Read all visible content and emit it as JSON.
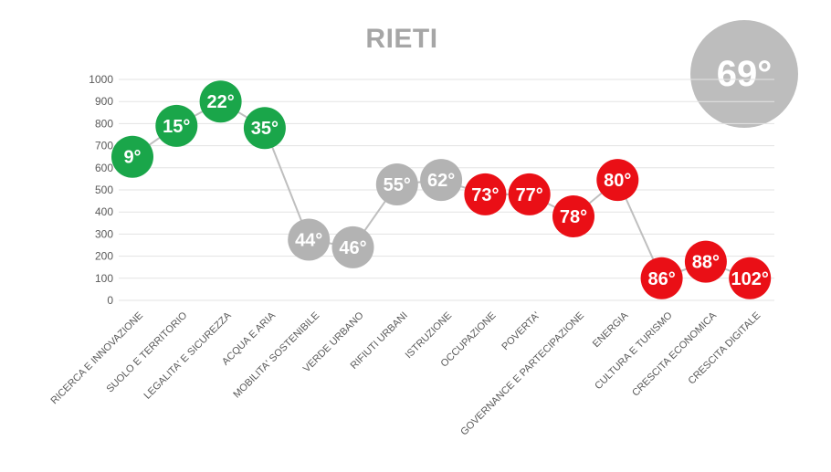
{
  "title": "RIETI",
  "overall_badge": "69°",
  "colors": {
    "green": "#1aa64a",
    "grey": "#b3b3b3",
    "red": "#ea0f16",
    "line": "#bfbfbf",
    "grid": "#e3e3e3",
    "title": "#a6a6a6",
    "badge": "#bdbdbd"
  },
  "chart_data": {
    "type": "line",
    "title": "RIETI",
    "xlabel": "",
    "ylabel": "",
    "ylim": [
      0,
      1000
    ],
    "yticks": [
      0,
      100,
      200,
      300,
      400,
      500,
      600,
      700,
      800,
      900,
      1000
    ],
    "grid": true,
    "categories": [
      "RICERCA E INNOVAZIONE",
      "SUOLO E TERRITORIO",
      "LEGALITA' E SICUREZZA",
      "ACQUA E ARIA",
      "MOBILITA' SOSTENIBILE",
      "VERDE URBANO",
      "RIFIUTI URBANI",
      "ISTRUZIONE",
      "OCCUPAZIONE",
      "POVERTA'",
      "GOVERNANCE E PARTECIPAZIONE",
      "ENERGIA",
      "CULTURA E TURISMO",
      "CRESCITA ECONOMICA",
      "CRESCITA DIGITALE"
    ],
    "values": [
      650,
      790,
      900,
      780,
      275,
      240,
      525,
      545,
      480,
      480,
      380,
      545,
      100,
      175,
      100
    ],
    "data_labels": [
      "9°",
      "15°",
      "22°",
      "35°",
      "44°",
      "46°",
      "55°",
      "62°",
      "73°",
      "77°",
      "78°",
      "80°",
      "86°",
      "88°",
      "102°"
    ],
    "point_colors": [
      "green",
      "green",
      "green",
      "green",
      "grey",
      "grey",
      "grey",
      "grey",
      "red",
      "red",
      "red",
      "red",
      "red",
      "red",
      "red"
    ]
  }
}
